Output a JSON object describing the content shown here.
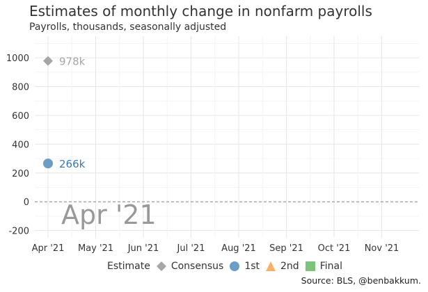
{
  "title": "Estimates of monthly change in nonfarm payrolls",
  "subtitle": "Payrolls, thousands, seasonally adjusted",
  "source": "Source: BLS, @benbakkum.",
  "legend": {
    "title": "Estimate",
    "items": [
      {
        "label": "Consensus",
        "shape": "diamond",
        "color": "#a6a6a6"
      },
      {
        "label": "1st",
        "shape": "circle",
        "color": "#6a9ec7"
      },
      {
        "label": "2nd",
        "shape": "triangle",
        "color": "#f7b06a"
      },
      {
        "label": "Final",
        "shape": "square",
        "color": "#7cc47c"
      }
    ]
  },
  "chart_data": {
    "type": "scatter",
    "title": "Estimates of monthly change in nonfarm payrolls",
    "subtitle": "Payrolls, thousands, seasonally adjusted",
    "x_categories": [
      "Apr '21",
      "May '21",
      "Jun '21",
      "Jul '21",
      "Aug '21",
      "Sep '21",
      "Oct '21",
      "Nov '21"
    ],
    "ylim": [
      -250,
      1150
    ],
    "y_ticks": [
      -200,
      0,
      200,
      400,
      600,
      800,
      1000
    ],
    "grid": true,
    "zero_line": "dashed",
    "legend_position": "bottom",
    "current_label": "Apr '21",
    "series": [
      {
        "name": "Consensus",
        "color": "#a6a6a6",
        "shape": "diamond",
        "points": [
          {
            "x": "Apr '21",
            "y": 978,
            "label": "978k"
          }
        ]
      },
      {
        "name": "1st",
        "color": "#6a9ec7",
        "shape": "circle",
        "label_color": "#3a78b0",
        "points": [
          {
            "x": "Apr '21",
            "y": 266,
            "label": "266k"
          }
        ]
      },
      {
        "name": "2nd",
        "color": "#f7b06a",
        "shape": "triangle",
        "points": []
      },
      {
        "name": "Final",
        "color": "#7cc47c",
        "shape": "square",
        "points": []
      }
    ]
  }
}
